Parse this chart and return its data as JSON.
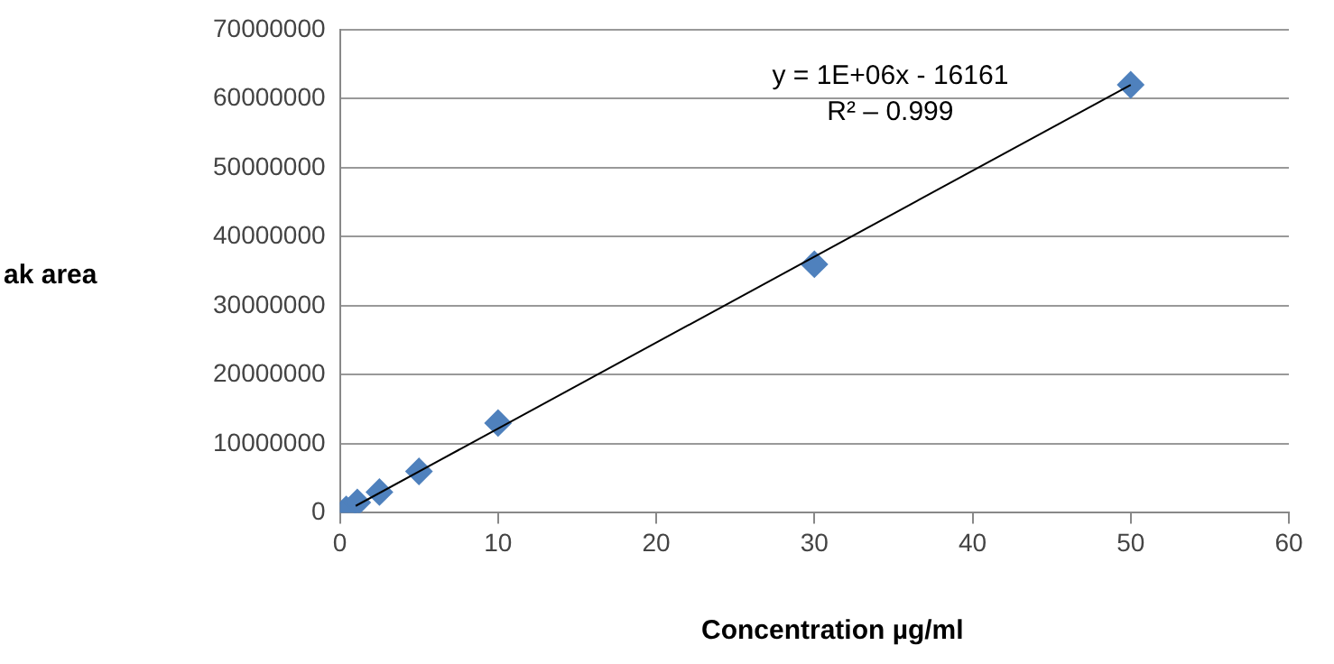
{
  "chart_data": {
    "type": "scatter",
    "xlabel": "Concentration µg/ml",
    "ylabel": "ak area",
    "annotations": [
      "y = 1E+06x - 16161",
      "R² – 0.999"
    ],
    "xlim": [
      0,
      60
    ],
    "xticks": [
      0,
      10,
      20,
      30,
      40,
      50,
      60
    ],
    "ylim": [
      0,
      70000000
    ],
    "yticks": [
      0,
      10000000,
      20000000,
      30000000,
      40000000,
      50000000,
      60000000,
      70000000
    ],
    "grid": "y",
    "legend": false,
    "series": [
      {
        "color": "#4f81bd",
        "marker": "diamond",
        "x": [
          0.4,
          1.1,
          2.5,
          5,
          10,
          30,
          50
        ],
        "values": [
          500000,
          1500000,
          3000000,
          6000000,
          13000000,
          36000000,
          62000000
        ]
      },
      {
        "type": "line",
        "color": "#000000",
        "marker": "none",
        "line_style": "solid",
        "x": [
          1,
          50
        ],
        "values": [
          1000000,
          62000000
        ]
      }
    ]
  }
}
